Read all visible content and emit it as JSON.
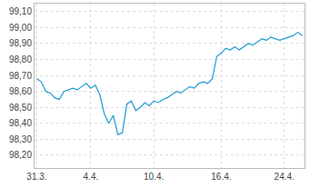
{
  "chart_data": {
    "type": "line",
    "color": "#1e9ad6",
    "grid": true,
    "categories": [
      "31.3.",
      null,
      null,
      null,
      null,
      null,
      null,
      null,
      null,
      null,
      null,
      null,
      "4.4.",
      null,
      null,
      null,
      null,
      null,
      null,
      null,
      null,
      null,
      null,
      null,
      null,
      null,
      "10.4.",
      null,
      null,
      null,
      null,
      null,
      null,
      null,
      null,
      null,
      null,
      null,
      null,
      null,
      null,
      "16.4.",
      null,
      null,
      null,
      null,
      null,
      null,
      null,
      null,
      null,
      null,
      null,
      null,
      null,
      "24.4.",
      null,
      null,
      null,
      null
    ],
    "values": [
      98.68,
      98.66,
      98.6,
      98.59,
      98.56,
      98.55,
      98.6,
      98.61,
      98.62,
      98.61,
      98.63,
      98.65,
      98.62,
      98.64,
      98.58,
      98.46,
      98.4,
      98.45,
      98.33,
      98.34,
      98.52,
      98.54,
      98.48,
      98.5,
      98.53,
      98.51,
      98.54,
      98.53,
      98.55,
      98.56,
      98.58,
      98.6,
      98.59,
      98.61,
      98.63,
      98.62,
      98.65,
      98.66,
      98.65,
      98.68,
      98.82,
      98.84,
      98.87,
      98.86,
      98.88,
      98.86,
      98.88,
      98.9,
      98.89,
      98.91,
      98.93,
      98.92,
      98.94,
      98.93,
      98.92,
      98.93,
      98.94,
      98.95,
      98.97,
      98.95
    ],
    "ylim": [
      98.12,
      99.15
    ],
    "yticks": [
      {
        "value": 98.2,
        "label": "98,20"
      },
      {
        "value": 98.3,
        "label": "98,30"
      },
      {
        "value": 98.4,
        "label": "98,40"
      },
      {
        "value": 98.5,
        "label": "98,50"
      },
      {
        "value": 98.6,
        "label": "98,60"
      },
      {
        "value": 98.7,
        "label": "98,70"
      },
      {
        "value": 98.8,
        "label": "98,80"
      },
      {
        "value": 98.9,
        "label": "98,90"
      },
      {
        "value": 99.0,
        "label": "99,00"
      },
      {
        "value": 99.1,
        "label": "99,10"
      }
    ]
  }
}
